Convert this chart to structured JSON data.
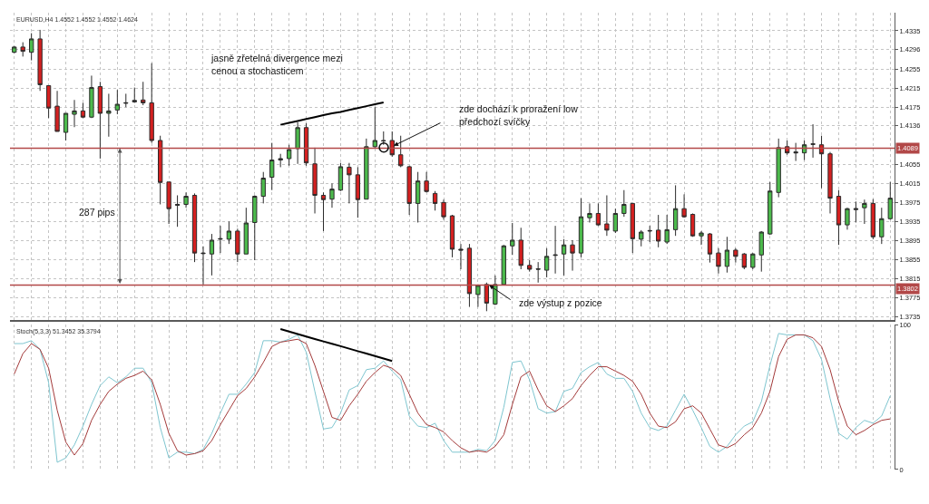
{
  "chart_data": [
    {
      "type": "candlestick",
      "title": "EURUSD,H4 1.4552 1.4552 1.4552 1.4624",
      "categories": [
        null,
        null,
        null,
        null,
        null,
        null,
        null,
        null,
        null,
        null,
        null,
        null,
        null,
        null,
        null,
        null,
        null,
        null,
        null,
        null,
        null,
        null,
        null,
        null,
        null,
        null,
        null,
        null,
        null,
        null,
        null,
        null,
        null,
        null,
        null,
        null,
        null,
        null,
        null,
        null,
        null,
        null,
        null,
        null,
        null,
        null,
        null,
        null,
        null,
        null,
        null,
        null,
        null,
        null,
        null,
        null,
        null,
        null,
        null,
        null,
        null,
        null,
        null,
        null,
        null,
        null,
        null,
        null,
        null,
        null,
        null,
        null,
        null,
        null,
        null,
        null,
        null,
        null,
        null,
        null,
        null,
        null,
        null,
        null,
        null,
        null,
        null,
        null,
        null,
        null,
        null,
        null,
        null,
        null,
        null,
        null,
        null,
        null,
        null,
        null,
        null,
        null,
        null
      ],
      "ohlc": [
        [
          1.429,
          1.4303,
          1.4288,
          1.4301
        ],
        [
          1.4301,
          1.4311,
          1.4281,
          1.4292
        ],
        [
          1.429,
          1.433,
          1.4273,
          1.4318
        ],
        [
          1.4318,
          1.4337,
          1.4209,
          1.4222
        ],
        [
          1.422,
          1.422,
          1.4152,
          1.4173
        ],
        [
          1.4177,
          1.4209,
          1.4124,
          1.4124
        ],
        [
          1.4122,
          1.4162,
          1.4105,
          1.4162
        ],
        [
          1.416,
          1.419,
          1.4133,
          1.4167
        ],
        [
          1.4167,
          1.4184,
          1.4152,
          1.4154
        ],
        [
          1.4154,
          1.4241,
          1.4152,
          1.4216
        ],
        [
          1.4218,
          1.4228,
          1.4067,
          1.4162
        ],
        [
          1.4162,
          1.4203,
          1.4113,
          1.4167
        ],
        [
          1.4169,
          1.4211,
          1.416,
          1.4181
        ],
        [
          1.4183,
          1.4203,
          1.4175,
          1.4184
        ],
        [
          1.4189,
          1.4216,
          1.4184,
          1.4186
        ],
        [
          1.419,
          1.4228,
          1.4179,
          1.4184
        ],
        [
          1.4184,
          1.4267,
          1.41,
          1.4105
        ],
        [
          1.4105,
          1.4115,
          1.3971,
          1.4017
        ],
        [
          1.4018,
          1.4018,
          1.393,
          1.3962
        ],
        [
          1.3969,
          1.399,
          1.3924,
          1.3971
        ],
        [
          1.3971,
          1.3996,
          1.3964,
          1.3988
        ],
        [
          1.399,
          1.3994,
          1.385,
          1.3869
        ],
        [
          1.3869,
          1.3883,
          1.3803,
          1.3868
        ],
        [
          1.3867,
          1.3909,
          1.3822,
          1.3896
        ],
        [
          1.3898,
          1.3926,
          1.3869,
          1.3899
        ],
        [
          1.3898,
          1.3935,
          1.3888,
          1.3915
        ],
        [
          1.3915,
          1.392,
          1.385,
          1.3867
        ],
        [
          1.3867,
          1.3964,
          1.3867,
          1.3932
        ],
        [
          1.3933,
          1.399,
          1.3854,
          1.3988
        ],
        [
          1.3988,
          1.4039,
          1.3973,
          1.4026
        ],
        [
          1.4028,
          1.41,
          1.4001,
          1.4064
        ],
        [
          1.4064,
          1.4077,
          1.4049,
          1.4067
        ],
        [
          1.4067,
          1.4096,
          1.4052,
          1.4086
        ],
        [
          1.4088,
          1.4143,
          1.4056,
          1.4132
        ],
        [
          1.4132,
          1.4141,
          1.4052,
          1.4058
        ],
        [
          1.4056,
          1.409,
          1.3952,
          1.399
        ],
        [
          1.399,
          1.3996,
          1.3915,
          1.3981
        ],
        [
          1.3982,
          1.4015,
          1.3964,
          1.4003
        ],
        [
          1.4001,
          1.4058,
          1.3999,
          1.405
        ],
        [
          1.4049,
          1.4058,
          1.3973,
          1.4033
        ],
        [
          1.4033,
          1.4049,
          1.3943,
          1.3981
        ],
        [
          1.3982,
          1.4109,
          1.3982,
          1.4092
        ],
        [
          1.4092,
          1.4175,
          1.409,
          1.4105
        ],
        [
          1.4105,
          1.4124,
          1.4096,
          1.4104
        ],
        [
          1.4105,
          1.4124,
          1.4071,
          1.4075
        ],
        [
          1.4075,
          1.4115,
          1.4049,
          1.4052
        ],
        [
          1.405,
          1.4052,
          1.3949,
          1.3973
        ],
        [
          1.3973,
          1.4039,
          1.3933,
          1.402
        ],
        [
          1.402,
          1.4039,
          1.3996,
          1.3998
        ],
        [
          1.3994,
          1.3999,
          1.3958,
          1.3973
        ],
        [
          1.3975,
          1.3981,
          1.3939,
          1.3945
        ],
        [
          1.3947,
          1.3949,
          1.386,
          1.3877
        ],
        [
          1.3877,
          1.3888,
          1.3835,
          1.3875
        ],
        [
          1.3879,
          1.3888,
          1.3756,
          1.3784
        ],
        [
          1.3782,
          1.3803,
          1.3756,
          1.3801
        ],
        [
          1.3803,
          1.3807,
          1.3747,
          1.3764
        ],
        [
          1.3762,
          1.3822,
          1.376,
          1.3803
        ],
        [
          1.3803,
          1.3886,
          1.3801,
          1.3884
        ],
        [
          1.3884,
          1.3932,
          1.3865,
          1.3896
        ],
        [
          1.3896,
          1.3922,
          1.3835,
          1.3843
        ],
        [
          1.3843,
          1.3854,
          1.383,
          1.3835
        ],
        [
          1.3836,
          1.385,
          1.3807,
          1.3835
        ],
        [
          1.3833,
          1.3879,
          1.3818,
          1.3862
        ],
        [
          1.3864,
          1.3926,
          1.3826,
          1.3865
        ],
        [
          1.3867,
          1.3898,
          1.3822,
          1.3886
        ],
        [
          1.3886,
          1.3896,
          1.3832,
          1.3869
        ],
        [
          1.3869,
          1.3984,
          1.386,
          1.3945
        ],
        [
          1.3943,
          1.3973,
          1.3933,
          1.3952
        ],
        [
          1.3952,
          1.3973,
          1.3926,
          1.3928
        ],
        [
          1.393,
          1.399,
          1.3905,
          1.3917
        ],
        [
          1.3915,
          1.3962,
          1.3911,
          1.3952
        ],
        [
          1.3952,
          1.4001,
          1.3945,
          1.3971
        ],
        [
          1.3973,
          1.3973,
          1.3869,
          1.3899
        ],
        [
          1.3898,
          1.3917,
          1.3883,
          1.3913
        ],
        [
          1.3915,
          1.3926,
          1.3892,
          1.3916
        ],
        [
          1.3917,
          1.3949,
          1.3881,
          1.3894
        ],
        [
          1.3892,
          1.3949,
          1.3888,
          1.3918
        ],
        [
          1.3918,
          1.4011,
          1.3905,
          1.3962
        ],
        [
          1.3962,
          1.3992,
          1.3943,
          1.3945
        ],
        [
          1.395,
          1.3952,
          1.3903,
          1.3905
        ],
        [
          1.3905,
          1.3915,
          1.3886,
          1.3911
        ],
        [
          1.3909,
          1.3911,
          1.3849,
          1.3867
        ],
        [
          1.3869,
          1.3879,
          1.3826,
          1.3841
        ],
        [
          1.3841,
          1.3903,
          1.3828,
          1.3875
        ],
        [
          1.3875,
          1.3879,
          1.3849,
          1.3862
        ],
        [
          1.3867,
          1.3869,
          1.3835,
          1.3839
        ],
        [
          1.3839,
          1.3869,
          1.3835,
          1.3867
        ],
        [
          1.3865,
          1.3915,
          1.383,
          1.3913
        ],
        [
          1.3909,
          1.4018,
          1.3907,
          1.3999
        ],
        [
          1.3996,
          1.4109,
          1.3986,
          1.409
        ],
        [
          1.4092,
          1.4105,
          1.4075,
          1.4079
        ],
        [
          1.4081,
          1.41,
          1.4062,
          1.4079
        ],
        [
          1.4079,
          1.4105,
          1.4064,
          1.4096
        ],
        [
          1.4098,
          1.4139,
          1.4069,
          1.4097
        ],
        [
          1.4096,
          1.4115,
          1.4005,
          1.4077
        ],
        [
          1.4077,
          1.4081,
          1.3952,
          1.3984
        ],
        [
          1.3988,
          1.4001,
          1.3886,
          1.3928
        ],
        [
          1.3928,
          1.3964,
          1.3918,
          1.3962
        ],
        [
          1.396,
          1.3977,
          1.3933,
          1.3962
        ],
        [
          1.3964,
          1.3981,
          1.393,
          1.3973
        ],
        [
          1.3973,
          1.3982,
          1.3898,
          1.3903
        ],
        [
          1.3903,
          1.3964,
          1.3888,
          1.3941
        ],
        [
          1.3941,
          1.4018,
          1.3939,
          1.3984
        ]
      ],
      "colors": [
        "#4cba4c",
        "#d42020",
        "#4cba4c",
        "#d42020",
        "#d42020",
        "#d42020",
        "#4cba4c",
        "#4cba4c",
        "#d42020",
        "#4cba4c",
        "#d42020",
        "#4cba4c",
        "#4cba4c",
        "#2b2b2b",
        "#2b2b2b",
        "#d42020",
        "#d42020",
        "#d42020",
        "#d42020",
        "#2b2b2b",
        "#4cba4c",
        "#d42020",
        "#2b2b2b",
        "#4cba4c",
        "#2b2b2b",
        "#4cba4c",
        "#d42020",
        "#4cba4c",
        "#4cba4c",
        "#4cba4c",
        "#4cba4c",
        "#2b2b2b",
        "#4cba4c",
        "#4cba4c",
        "#d42020",
        "#d42020",
        "#d42020",
        "#4cba4c",
        "#4cba4c",
        "#d42020",
        "#d42020",
        "#4cba4c",
        "#4cba4c",
        "#2b2b2b",
        "#d42020",
        "#d42020",
        "#d42020",
        "#4cba4c",
        "#d42020",
        "#d42020",
        "#d42020",
        "#d42020",
        "#2b2b2b",
        "#d42020",
        "#4cba4c",
        "#d42020",
        "#4cba4c",
        "#4cba4c",
        "#4cba4c",
        "#d42020",
        "#d42020",
        "#2b2b2b",
        "#4cba4c",
        "#2b2b2b",
        "#4cba4c",
        "#d42020",
        "#4cba4c",
        "#4cba4c",
        "#d42020",
        "#d42020",
        "#4cba4c",
        "#4cba4c",
        "#d42020",
        "#4cba4c",
        "#2b2b2b",
        "#d42020",
        "#4cba4c",
        "#4cba4c",
        "#d42020",
        "#d42020",
        "#4cba4c",
        "#d42020",
        "#d42020",
        "#4cba4c",
        "#d42020",
        "#d42020",
        "#4cba4c",
        "#4cba4c",
        "#4cba4c",
        "#4cba4c",
        "#d42020",
        "#2b2b2b",
        "#4cba4c",
        "#2b2b2b",
        "#d42020",
        "#d42020",
        "#d42020",
        "#4cba4c",
        "#2b2b2b",
        "#4cba4c",
        "#d42020",
        "#4cba4c",
        "#4cba4c"
      ],
      "series": [
        {
          "type": "line",
          "color": "#000000",
          "values": [
            null,
            null,
            null,
            null,
            null,
            null,
            null,
            null,
            null,
            null,
            null,
            null,
            null,
            null,
            null,
            null,
            null,
            null,
            null,
            null,
            null,
            null,
            null,
            null,
            null,
            null,
            null,
            null,
            null,
            null,
            null,
            1.4138,
            1.4142,
            1.4146,
            1.415,
            1.4154,
            1.4158,
            1.4162,
            1.4165,
            1.4169,
            1.4173,
            1.4177,
            1.4181,
            1.4185,
            null,
            null,
            null,
            null,
            null,
            null,
            null,
            null,
            null,
            null,
            null,
            null,
            null,
            null,
            null,
            null,
            null,
            null,
            null,
            null,
            null,
            null,
            null,
            null,
            null,
            null,
            null,
            null,
            null,
            null,
            null,
            null,
            null,
            null,
            null,
            null,
            null,
            null,
            null,
            null,
            null,
            null,
            null,
            null,
            null,
            null,
            null,
            null,
            null,
            null,
            null,
            null,
            null,
            null,
            null,
            null,
            null,
            null,
            null
          ]
        }
      ],
      "ylim": [
        1.3728,
        1.4373
      ],
      "yticks": [
        1.4335,
        1.4296,
        1.4255,
        1.4215,
        1.4175,
        1.4136,
        1.4055,
        1.4015,
        1.3975,
        1.3935,
        1.3895,
        1.3855,
        1.3815,
        1.3775,
        1.3735
      ],
      "grid": true,
      "tick_labels": "y",
      "ref_lines": [
        {
          "axis": "y",
          "value": 1.4089,
          "label": "1.4089",
          "color": "#b24848"
        },
        {
          "axis": "y",
          "value": 1.3802,
          "label": "1.3802",
          "color": "#b24848"
        }
      ],
      "annotations": [
        "jasně zřetelná divergence mezi\ncenou a stochasticem",
        "zde dochází k proražení low\npředchozí svíčky",
        "287 pips",
        "zde výstup z pozice"
      ]
    },
    {
      "type": "line",
      "title": "Stoch(5,3,3) 51.3452 35.3794",
      "categories": [
        null,
        null,
        null,
        null,
        null,
        null,
        null,
        null,
        null,
        null,
        null,
        null,
        null,
        null,
        null,
        null,
        null,
        null,
        null,
        null,
        null,
        null,
        null,
        null,
        null,
        null,
        null,
        null,
        null,
        null,
        null,
        null,
        null,
        null,
        null,
        null,
        null,
        null,
        null,
        null,
        null,
        null,
        null,
        null,
        null,
        null,
        null,
        null,
        null,
        null,
        null,
        null,
        null,
        null,
        null,
        null,
        null,
        null,
        null,
        null,
        null,
        null,
        null,
        null,
        null,
        null,
        null,
        null,
        null,
        null,
        null,
        null,
        null,
        null,
        null,
        null,
        null,
        null,
        null,
        null,
        null,
        null,
        null,
        null,
        null,
        null,
        null,
        null,
        null,
        null,
        null,
        null,
        null,
        null,
        null,
        null,
        null,
        null,
        null,
        null,
        null,
        null,
        null
      ],
      "series": [
        {
          "color": "#7ec5cf",
          "values": [
            87,
            87,
            89,
            83,
            60,
            5,
            8,
            17,
            30,
            45,
            58,
            64,
            60,
            64,
            70,
            70,
            60,
            29,
            8,
            12,
            12,
            11,
            14,
            25,
            39,
            52,
            52,
            59,
            67,
            89,
            89,
            88,
            90,
            93,
            81,
            54,
            28,
            29,
            39,
            55,
            58,
            69,
            70,
            75,
            68,
            62,
            37,
            30,
            29,
            32,
            20,
            12,
            12,
            12,
            14,
            13,
            20,
            43,
            74,
            75,
            62,
            42,
            39,
            40,
            54,
            56,
            67,
            71,
            74,
            66,
            63,
            63,
            54,
            39,
            29,
            27,
            30,
            41,
            52,
            41,
            29,
            16,
            12,
            16,
            24,
            30,
            33,
            47,
            72,
            94,
            93,
            93,
            93,
            89,
            76,
            49,
            25,
            21,
            29,
            34,
            32,
            37,
            51
          ]
        },
        {
          "color": "#a33a3a",
          "values": [
            66,
            80,
            87,
            83,
            70,
            41,
            19,
            10,
            18,
            34,
            45,
            54,
            59,
            63,
            65,
            68,
            62,
            45,
            25,
            13,
            10,
            11,
            13,
            20,
            31,
            41,
            51,
            56,
            64,
            74,
            85,
            88,
            89,
            90,
            87,
            72,
            54,
            36,
            34,
            44,
            52,
            61,
            67,
            72,
            70,
            65,
            52,
            39,
            31,
            29,
            26,
            20,
            15,
            12,
            13,
            12,
            16,
            24,
            45,
            64,
            68,
            55,
            44,
            40,
            44,
            49,
            58,
            65,
            71,
            71,
            68,
            65,
            61,
            52,
            39,
            30,
            29,
            33,
            42,
            44,
            39,
            28,
            17,
            15,
            18,
            24,
            29,
            39,
            54,
            78,
            90,
            93,
            93,
            91,
            85,
            69,
            47,
            30,
            24,
            27,
            31,
            34,
            35
          ]
        },
        {
          "color": "#000000",
          "values": [
            null,
            null,
            null,
            null,
            null,
            null,
            null,
            null,
            null,
            null,
            null,
            null,
            null,
            null,
            null,
            null,
            null,
            null,
            null,
            null,
            null,
            null,
            null,
            null,
            null,
            null,
            null,
            null,
            null,
            null,
            null,
            97,
            95.3,
            93.6,
            91.9,
            90.2,
            88.5,
            86.9,
            85.2,
            83.5,
            81.8,
            80.1,
            78.4,
            76.7,
            75,
            null,
            null,
            null,
            null,
            null,
            null,
            null,
            null,
            null,
            null,
            null,
            null,
            null,
            null,
            null,
            null,
            null,
            null,
            null,
            null,
            null,
            null,
            null,
            null,
            null,
            null,
            null,
            null,
            null,
            null,
            null,
            null,
            null,
            null,
            null,
            null,
            null,
            null,
            null,
            null,
            null,
            null,
            null,
            null,
            null,
            null,
            null,
            null,
            null,
            null,
            null,
            null,
            null,
            null,
            null,
            null,
            null,
            null
          ]
        }
      ],
      "ylim": [
        0,
        100
      ],
      "yticks": [
        0,
        100
      ],
      "grid": "x",
      "tick_labels": "y"
    }
  ]
}
